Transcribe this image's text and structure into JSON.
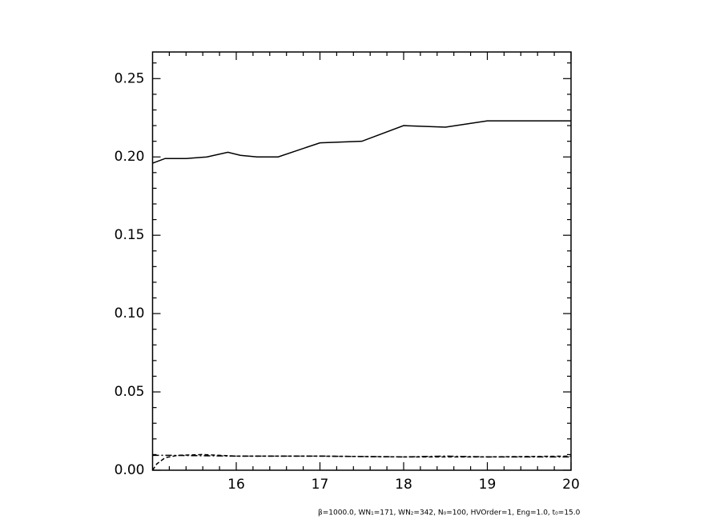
{
  "chart_data": {
    "type": "line",
    "footnote": "β=1000.0, WN₁=171, WN₂=342, N₀=100, HVOrder=1, Eng=1.0, t₀=15.0",
    "xlim": [
      15,
      20
    ],
    "xticks": [
      16,
      17,
      18,
      19,
      20
    ],
    "xminorticks": [
      15.2,
      15.4,
      15.6,
      15.8,
      16.2,
      16.4,
      16.6,
      16.8,
      17.2,
      17.4,
      17.6,
      17.8,
      18.2,
      18.4,
      18.6,
      18.8,
      19.2,
      19.4,
      19.6,
      19.8
    ],
    "ylim": [
      0,
      0.267
    ],
    "yticks": [
      {
        "value": 0,
        "label": "0.00"
      },
      0.05,
      {
        "value": 0.1,
        "label": "0.10"
      },
      0.15,
      {
        "value": 0.2,
        "label": "0.20"
      },
      0.25
    ],
    "yminorticks": [
      0.01,
      0.02,
      0.03,
      0.04,
      0.06,
      0.07,
      0.08,
      0.09,
      0.11,
      0.12,
      0.13,
      0.14,
      0.16,
      0.17,
      0.18,
      0.19,
      0.21,
      0.22,
      0.23,
      0.24,
      0.26
    ],
    "series": [
      {
        "color": "#000000",
        "style": "solid",
        "x": [
          15.0,
          15.15,
          15.4,
          15.65,
          15.9,
          16.05,
          16.25,
          16.5,
          17.0,
          17.5,
          18.0,
          18.5,
          19.0,
          19.5,
          20.0
        ],
        "values": [
          0.196,
          0.199,
          0.199,
          0.2,
          0.203,
          0.201,
          0.2,
          0.2,
          0.209,
          0.21,
          0.22,
          0.219,
          0.223,
          0.223,
          0.223
        ]
      },
      {
        "color": "#000000",
        "style": "dashed",
        "x": [
          15.0,
          15.05,
          15.15,
          15.3,
          15.6,
          16.0,
          17.0,
          18.0,
          19.0,
          20.0
        ],
        "values": [
          0.0,
          0.004,
          0.008,
          0.0095,
          0.01,
          0.009,
          0.009,
          0.0085,
          0.0085,
          0.009
        ]
      },
      {
        "color": "#000000",
        "style": "dashdot",
        "x": [
          15.0,
          15.2,
          16.0,
          17.0,
          18.0,
          18.5,
          19.0,
          20.0
        ],
        "values": [
          0.0095,
          0.0095,
          0.009,
          0.009,
          0.0085,
          0.009,
          0.0085,
          0.0085
        ]
      }
    ]
  }
}
